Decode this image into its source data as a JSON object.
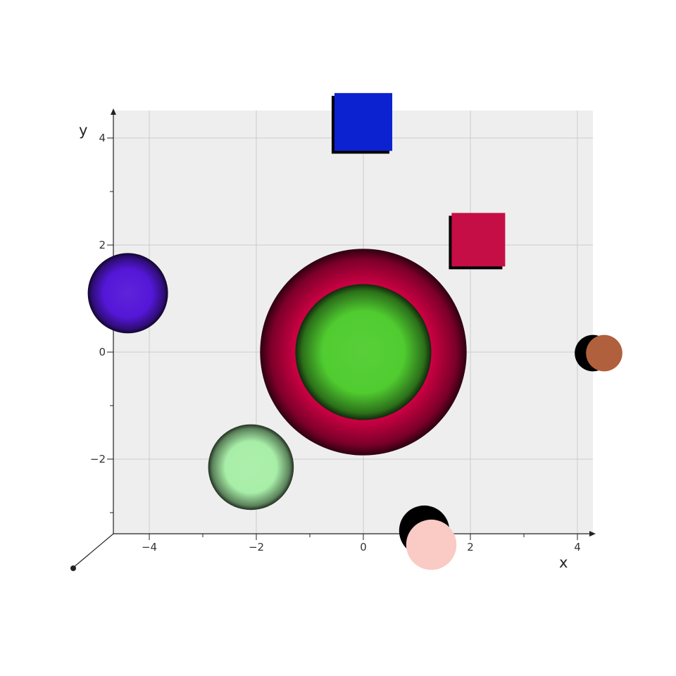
{
  "plot": {
    "background": "#eeeeee",
    "grid_color": "#cccccc",
    "axis_color": "#222222",
    "x_label": "x",
    "y_label": "y",
    "x_ticks": [
      {
        "value": -4,
        "label": "−4"
      },
      {
        "value": -2,
        "label": "−2"
      },
      {
        "value": 0,
        "label": "0"
      },
      {
        "value": 2,
        "label": "2"
      },
      {
        "value": 4,
        "label": "4"
      }
    ],
    "y_ticks": [
      {
        "value": 4,
        "label": "4"
      },
      {
        "value": 2,
        "label": "2"
      },
      {
        "value": 0,
        "label": "0"
      },
      {
        "value": -2,
        "label": "−2"
      }
    ]
  },
  "objects": [
    {
      "name": "indigo-sphere",
      "shape": "sphere",
      "x": -4.4,
      "y": 1.1,
      "r": 0.75,
      "color": "#5517d8"
    },
    {
      "name": "pale-green-sphere",
      "shape": "sphere",
      "x": -2.1,
      "y": -2.15,
      "r": 0.8,
      "color": "#a8eea8"
    },
    {
      "name": "crimson-torus",
      "shape": "torus",
      "x": 0,
      "y": 0,
      "r": 1.93,
      "color": "#e0004a"
    },
    {
      "name": "green-sphere",
      "shape": "sphere",
      "x": 0,
      "y": 0,
      "r": 1.27,
      "color": "#50cc30"
    },
    {
      "name": "blue-cube",
      "shape": "cube",
      "x": 0,
      "y": 4.3,
      "size": 1.08,
      "color": "#0c22d0"
    },
    {
      "name": "crimson-cube",
      "shape": "cube",
      "x": 2.15,
      "y": 2.1,
      "size": 1.0,
      "color": "#c50e45"
    },
    {
      "name": "copper-sphere",
      "shape": "disc",
      "x": 4.5,
      "y": -0.02,
      "r": 0.34,
      "color": "#b0603c"
    },
    {
      "name": "pink-sphere",
      "shape": "disc",
      "x": 1.27,
      "y": -3.6,
      "r": 0.47,
      "color": "#facac4"
    }
  ]
}
